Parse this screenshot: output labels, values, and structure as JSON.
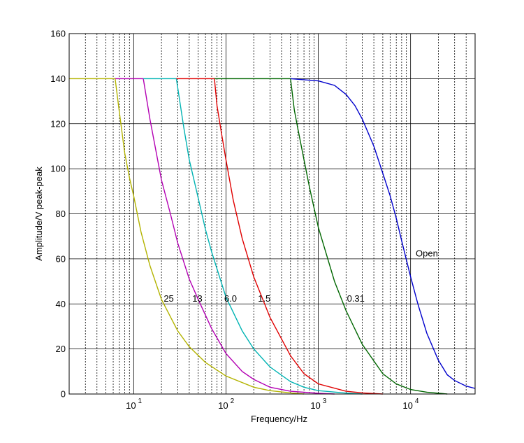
{
  "chart_data": {
    "type": "line",
    "title": "",
    "xlabel": "Frequency/Hz",
    "ylabel": "Amplitude/V peak-peak",
    "x_scale": "log",
    "xlim": [
      2,
      50000
    ],
    "ylim": [
      0,
      160
    ],
    "grid": true,
    "x_ticks": [
      {
        "value": 10,
        "base": "10",
        "exp": "1"
      },
      {
        "value": 100,
        "base": "10",
        "exp": "2"
      },
      {
        "value": 1000,
        "base": "10",
        "exp": "3"
      },
      {
        "value": 10000,
        "base": "10",
        "exp": "4"
      }
    ],
    "y_ticks": [
      0,
      20,
      40,
      60,
      80,
      100,
      120,
      140,
      160
    ],
    "series": [
      {
        "name": "25",
        "color": "#b3b300",
        "x": [
          2,
          6.3,
          7,
          8,
          9,
          10,
          12,
          15,
          20,
          30,
          40,
          60,
          100,
          200,
          300,
          500,
          700
        ],
        "y": [
          140,
          140,
          125,
          107,
          96,
          88,
          72,
          57,
          42,
          28,
          21,
          14,
          8,
          3,
          1.5,
          0.5,
          0
        ]
      },
      {
        "name": "13",
        "color": "#b300b3",
        "x": [
          6.3,
          12.7,
          15,
          20,
          25,
          30,
          40,
          50,
          70,
          100,
          150,
          200,
          300,
          500,
          1000,
          1500
        ],
        "y": [
          140,
          140,
          122,
          95,
          80,
          67,
          51,
          42,
          29,
          18,
          10,
          6.5,
          3,
          1.2,
          0.3,
          0
        ]
      },
      {
        "name": "6.0",
        "color": "#00b3b3",
        "x": [
          12.7,
          29,
          35,
          40,
          50,
          60,
          70,
          100,
          150,
          200,
          300,
          500,
          700,
          1000,
          2000,
          3000
        ],
        "y": [
          140,
          140,
          118,
          104,
          87,
          73,
          63,
          43,
          28,
          20,
          12,
          5.5,
          3,
          1.5,
          0.4,
          0
        ]
      },
      {
        "name": "1.5",
        "color": "#e00000",
        "x": [
          29,
          75,
          80,
          90,
          100,
          120,
          150,
          200,
          300,
          500,
          700,
          1000,
          2000,
          3000,
          5000
        ],
        "y": [
          140,
          140,
          128,
          115,
          104,
          86,
          69,
          52,
          34,
          17,
          9,
          4.5,
          1.2,
          0.5,
          0
        ]
      },
      {
        "name": "0.31",
        "color": "#006600",
        "x": [
          75,
          500,
          550,
          600,
          700,
          800,
          1000,
          1500,
          2000,
          3000,
          5000,
          7000,
          10000,
          15000,
          25000
        ],
        "y": [
          140,
          140,
          126,
          118,
          104,
          92,
          74,
          50,
          37,
          22,
          9,
          4.5,
          2,
          0.8,
          0
        ]
      },
      {
        "name": "Open",
        "color": "#0000cc",
        "x": [
          500,
          1000,
          1500,
          2000,
          2500,
          3000,
          4000,
          5000,
          6000,
          7000,
          8000,
          10000,
          12000,
          15000,
          20000,
          25000,
          30000,
          40000,
          50000
        ],
        "y": [
          140,
          139,
          137,
          133,
          128,
          122,
          110,
          98,
          88,
          78,
          68,
          52,
          40,
          27,
          15,
          8.5,
          6,
          3.5,
          2.5
        ]
      }
    ],
    "annotations": [
      {
        "text": "25",
        "x": 24,
        "y": 41
      },
      {
        "text": "13",
        "x": 49,
        "y": 41
      },
      {
        "text": "6.0",
        "x": 112,
        "y": 41
      },
      {
        "text": "1.5",
        "x": 260,
        "y": 41
      },
      {
        "text": "0.31",
        "x": 2550,
        "y": 41
      },
      {
        "text": "Open",
        "x": 15000,
        "y": 61
      }
    ]
  }
}
